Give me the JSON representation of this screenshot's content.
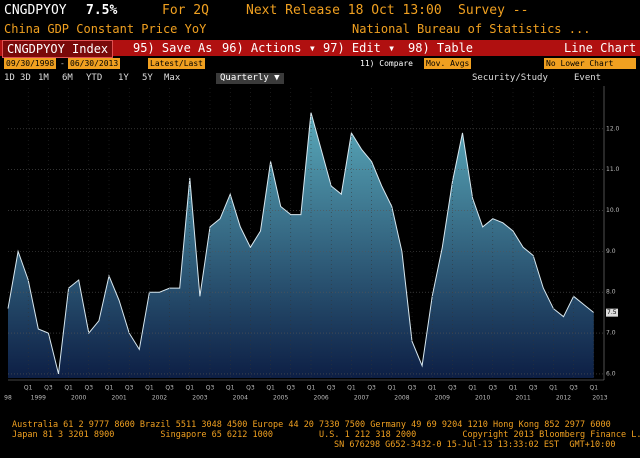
{
  "header": {
    "ticker": "CNGDPYOY",
    "last": "7.5%",
    "period": "For 2Q",
    "next_release": "Next Release 18 Oct 13:00",
    "survey": "Survey --",
    "description": "China GDP Constant Price YoY",
    "source": "National Bureau of Statistics ..."
  },
  "toolbar": {
    "security": "CNGDPYOY Index",
    "buttons": [
      "95) Save As",
      "96) Actions ▾",
      "97) Edit ▾",
      "98) Table"
    ],
    "view": "Line Chart"
  },
  "controls": {
    "start_date": "09/30/1998",
    "separator": "-",
    "end_date": "06/30/2013",
    "price_type": "Latest/Last",
    "compare": "11) Compare",
    "mov_avgs": "Mov. Avgs",
    "lower_chart": "No Lower Chart",
    "ranges": [
      "1D",
      "3D",
      "1M",
      "6M",
      "YTD",
      "1Y",
      "5Y",
      "Max"
    ],
    "frequency": "Quarterly ▼",
    "security_study": "Security/Study",
    "event": "Event"
  },
  "chart_data": {
    "type": "area",
    "values": [
      7.6,
      9.0,
      8.3,
      7.1,
      7.0,
      6.0,
      8.1,
      8.3,
      7.0,
      7.3,
      8.4,
      7.8,
      7.0,
      6.6,
      8.0,
      8.0,
      8.1,
      8.1,
      10.8,
      7.9,
      9.6,
      9.8,
      10.4,
      9.6,
      9.1,
      9.5,
      11.2,
      10.1,
      9.9,
      9.9,
      12.4,
      11.5,
      10.6,
      10.4,
      11.9,
      11.5,
      11.2,
      10.6,
      10.1,
      9.0,
      6.8,
      6.2,
      7.9,
      9.1,
      10.7,
      11.9,
      10.3,
      9.6,
      9.8,
      9.7,
      9.5,
      9.1,
      8.9,
      8.1,
      7.6,
      7.4,
      7.9,
      7.7,
      7.5
    ],
    "last_label": "7.5",
    "quarter_labels": [
      "Q1",
      "Q3"
    ],
    "years": [
      "98",
      "1999",
      "2000",
      "2001",
      "2002",
      "2003",
      "2004",
      "2005",
      "2006",
      "2007",
      "2008",
      "2009",
      "2010",
      "2011",
      "2012",
      "2013"
    ],
    "ylim": [
      5.9,
      13.0
    ],
    "yticks": [
      {
        "value": 6,
        "label": "6.0"
      },
      {
        "value": 7,
        "label": "7.0"
      },
      {
        "value": 8,
        "label": "8.0"
      },
      {
        "value": 9,
        "label": "9.0"
      },
      {
        "value": 10,
        "label": "10.0"
      },
      {
        "value": 11,
        "label": "11.0"
      },
      {
        "value": 12,
        "label": "12.0"
      }
    ],
    "grid": true,
    "line_color": "#d8e8f0",
    "fill_top": "#5aaabb",
    "fill_bottom": "#0d1f45"
  },
  "footer": {
    "lines": [
      "Australia 61 2 9777 8600 Brazil 5511 3048 4500 Europe 44 20 7330 7500 Germany 49 69 9204 1210 Hong Kong 852 2977 6000",
      "Japan 81 3 3201 8900         Singapore 65 6212 1000         U.S. 1 212 318 2000         Copyright 2013 Bloomberg Finance L.P.",
      "SN 676298 G652-3432-0 15-Jul-13 13:33:02 EST  GMT+10:00"
    ]
  }
}
